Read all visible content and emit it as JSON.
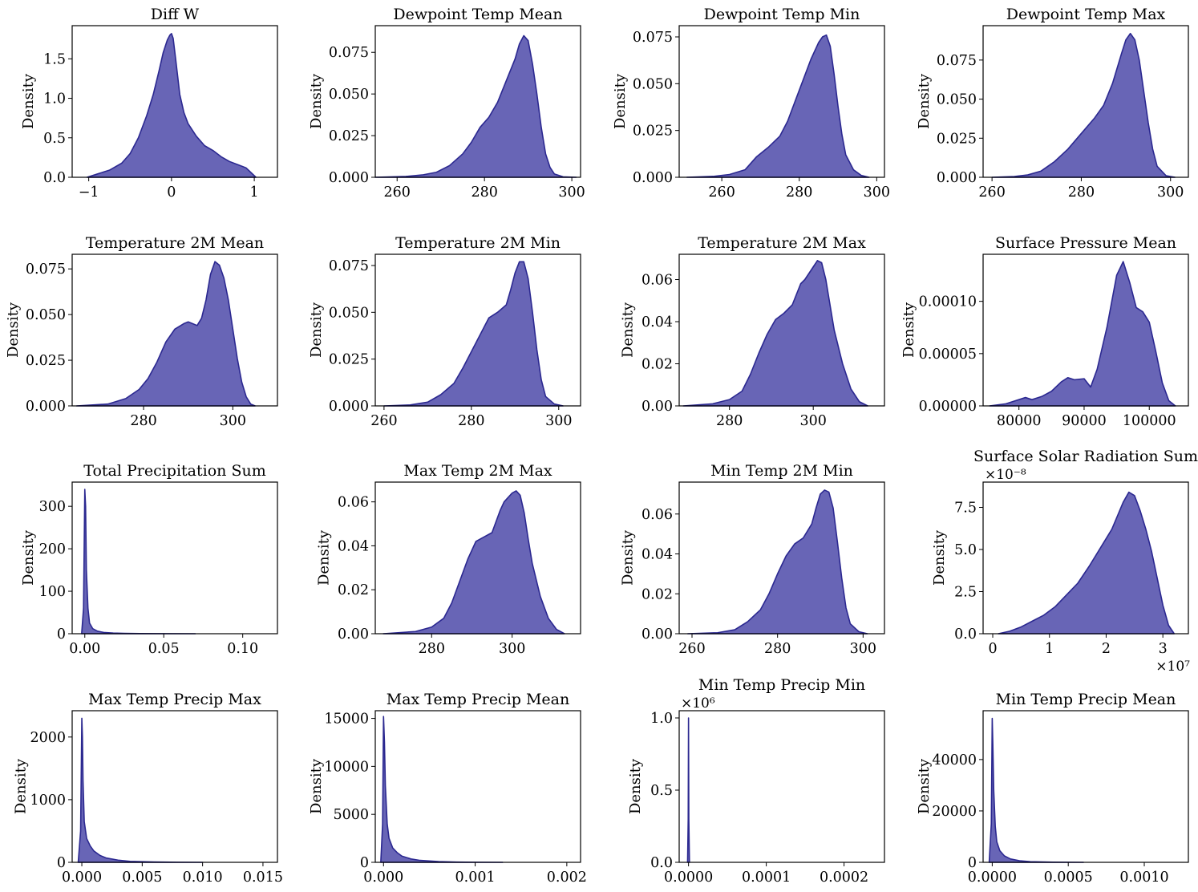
{
  "figure": {
    "fill_color": "#3a36a0",
    "line_color": "#2b2890",
    "fill_opacity": 0.77
  },
  "chart_data": [
    {
      "type": "area",
      "title": "Diff W",
      "ylabel": "Density",
      "xlim": [
        -1.2,
        1.28
      ],
      "ylim": [
        0,
        1.92
      ],
      "xticks": [
        -1,
        0,
        1
      ],
      "xtick_labels": [
        "−1",
        "0",
        "1"
      ],
      "yticks": [
        0,
        0.5,
        1.0,
        1.5
      ],
      "ytick_labels": [
        "0.0",
        "0.5",
        "1.0",
        "1.5"
      ],
      "x": [
        -1.02,
        -0.9,
        -0.75,
        -0.6,
        -0.5,
        -0.4,
        -0.3,
        -0.22,
        -0.15,
        -0.1,
        -0.05,
        -0.02,
        0.0,
        0.02,
        0.05,
        0.1,
        0.15,
        0.2,
        0.3,
        0.4,
        0.5,
        0.6,
        0.7,
        0.8,
        0.9,
        0.95,
        1.02
      ],
      "y": [
        0.0,
        0.04,
        0.09,
        0.18,
        0.3,
        0.5,
        0.78,
        1.05,
        1.35,
        1.58,
        1.74,
        1.8,
        1.82,
        1.76,
        1.5,
        1.05,
        0.82,
        0.68,
        0.52,
        0.4,
        0.34,
        0.26,
        0.2,
        0.16,
        0.12,
        0.07,
        0.0
      ]
    },
    {
      "type": "area",
      "title": "Dewpoint Temp Mean",
      "ylabel": "Density",
      "xlim": [
        255,
        302
      ],
      "ylim": [
        0,
        0.091
      ],
      "xticks": [
        260,
        280,
        300
      ],
      "xtick_labels": [
        "260",
        "280",
        "300"
      ],
      "yticks": [
        0,
        0.025,
        0.05,
        0.075
      ],
      "ytick_labels": [
        "0.000",
        "0.025",
        "0.050",
        "0.075"
      ],
      "x": [
        255,
        262,
        266,
        269,
        272,
        275,
        277,
        279,
        281,
        283,
        285,
        287,
        288,
        289,
        290,
        291,
        292,
        293,
        294,
        295,
        296,
        298,
        301
      ],
      "y": [
        0.0,
        0.0005,
        0.0015,
        0.003,
        0.007,
        0.014,
        0.021,
        0.03,
        0.036,
        0.045,
        0.058,
        0.071,
        0.08,
        0.085,
        0.082,
        0.068,
        0.05,
        0.03,
        0.014,
        0.006,
        0.002,
        0.0003,
        0.0
      ]
    },
    {
      "type": "area",
      "title": "Dewpoint Temp Min",
      "ylabel": "Density",
      "xlim": [
        249,
        302
      ],
      "ylim": [
        0,
        0.081
      ],
      "xticks": [
        260,
        280,
        300
      ],
      "xtick_labels": [
        "260",
        "280",
        "300"
      ],
      "yticks": [
        0,
        0.025,
        0.05,
        0.075
      ],
      "ytick_labels": [
        "0.000",
        "0.025",
        "0.050",
        "0.075"
      ],
      "x": [
        251,
        258,
        262,
        266,
        269,
        272,
        275,
        277,
        279,
        281,
        283,
        285,
        286,
        287,
        288,
        289,
        290,
        291,
        292,
        294,
        296,
        298
      ],
      "y": [
        0.0,
        0.0005,
        0.0015,
        0.004,
        0.011,
        0.016,
        0.022,
        0.03,
        0.041,
        0.052,
        0.063,
        0.072,
        0.075,
        0.076,
        0.07,
        0.055,
        0.038,
        0.023,
        0.012,
        0.004,
        0.001,
        0.0
      ]
    },
    {
      "type": "area",
      "title": "Dewpoint Temp Max",
      "ylabel": "Density",
      "xlim": [
        258,
        304
      ],
      "ylim": [
        0,
        0.097
      ],
      "xticks": [
        260,
        280,
        300
      ],
      "xtick_labels": [
        "260",
        "280",
        "300"
      ],
      "yticks": [
        0,
        0.025,
        0.05,
        0.075
      ],
      "ytick_labels": [
        "0.000",
        "0.025",
        "0.050",
        "0.075"
      ],
      "x": [
        260,
        265,
        268,
        271,
        274,
        277,
        280,
        283,
        285,
        287,
        289,
        290,
        291,
        292,
        293,
        294,
        295,
        296,
        297,
        299,
        301
      ],
      "y": [
        0.0,
        0.0005,
        0.0015,
        0.004,
        0.01,
        0.018,
        0.028,
        0.038,
        0.046,
        0.06,
        0.079,
        0.088,
        0.092,
        0.088,
        0.075,
        0.055,
        0.035,
        0.018,
        0.007,
        0.001,
        0.0
      ]
    },
    {
      "type": "area",
      "title": "Temperature 2M Mean",
      "ylabel": "Density",
      "xlim": [
        264,
        310
      ],
      "ylim": [
        0,
        0.083
      ],
      "xticks": [
        280,
        300
      ],
      "xtick_labels": [
        "280",
        "300"
      ],
      "yticks": [
        0,
        0.025,
        0.05,
        0.075
      ],
      "ytick_labels": [
        "0.000",
        "0.025",
        "0.050",
        "0.075"
      ],
      "x": [
        265,
        272,
        276,
        279,
        281,
        283,
        285,
        287,
        289,
        290,
        291,
        292,
        293,
        294,
        295,
        296,
        297,
        298,
        299,
        300,
        301,
        302,
        303,
        304,
        305
      ],
      "y": [
        0.0,
        0.001,
        0.004,
        0.009,
        0.015,
        0.024,
        0.035,
        0.042,
        0.045,
        0.046,
        0.045,
        0.044,
        0.048,
        0.058,
        0.072,
        0.079,
        0.077,
        0.07,
        0.058,
        0.042,
        0.026,
        0.013,
        0.005,
        0.001,
        0.0
      ]
    },
    {
      "type": "area",
      "title": "Temperature 2M Min",
      "ylabel": "Density",
      "xlim": [
        258,
        305
      ],
      "ylim": [
        0,
        0.081
      ],
      "xticks": [
        260,
        280,
        300
      ],
      "xtick_labels": [
        "260",
        "280",
        "300"
      ],
      "yticks": [
        0,
        0.025,
        0.05,
        0.075
      ],
      "ytick_labels": [
        "0.000",
        "0.025",
        "0.050",
        "0.075"
      ],
      "x": [
        260,
        266,
        270,
        273,
        276,
        278,
        280,
        282,
        284,
        286,
        288,
        289,
        290,
        291,
        292,
        293,
        294,
        295,
        296,
        297,
        299,
        301
      ],
      "y": [
        0.0,
        0.0005,
        0.002,
        0.006,
        0.012,
        0.02,
        0.029,
        0.038,
        0.047,
        0.05,
        0.054,
        0.062,
        0.071,
        0.077,
        0.077,
        0.068,
        0.05,
        0.03,
        0.014,
        0.005,
        0.001,
        0.0
      ]
    },
    {
      "type": "area",
      "title": "Temperature 2M Max",
      "ylabel": "Density",
      "xlim": [
        268,
        317
      ],
      "ylim": [
        0,
        0.072
      ],
      "xticks": [
        280,
        300
      ],
      "xtick_labels": [
        "280",
        "300"
      ],
      "yticks": [
        0,
        0.02,
        0.04,
        0.06
      ],
      "ytick_labels": [
        "0.00",
        "0.02",
        "0.04",
        "0.06"
      ],
      "x": [
        269,
        276,
        280,
        283,
        285,
        287,
        289,
        291,
        293,
        295,
        297,
        298,
        300,
        301,
        302,
        303,
        304,
        305,
        307,
        309,
        311,
        313
      ],
      "y": [
        0.0,
        0.001,
        0.003,
        0.007,
        0.015,
        0.025,
        0.034,
        0.041,
        0.044,
        0.048,
        0.058,
        0.06,
        0.066,
        0.069,
        0.068,
        0.06,
        0.048,
        0.036,
        0.02,
        0.008,
        0.002,
        0.0
      ]
    },
    {
      "type": "area",
      "title": "Surface Pressure Mean",
      "ylabel": "Density",
      "xlim": [
        74500,
        106000
      ],
      "ylim": [
        0,
        0.000145
      ],
      "xticks": [
        80000,
        90000,
        100000
      ],
      "xtick_labels": [
        "80000",
        "90000",
        "100000"
      ],
      "yticks": [
        0,
        5e-05,
        0.0001
      ],
      "ytick_labels": [
        "0.00000",
        "0.00005",
        "0.00010"
      ],
      "x": [
        75500,
        78000,
        80000,
        81000,
        82000,
        83500,
        85000,
        86500,
        87500,
        88500,
        90000,
        91000,
        92000,
        93500,
        95000,
        96000,
        97000,
        98000,
        99000,
        100000,
        101000,
        102000,
        103000,
        104000
      ],
      "y": [
        0.0,
        2e-06,
        6e-06,
        8e-06,
        6e-06,
        9e-06,
        1.4e-05,
        2.3e-05,
        2.7e-05,
        2.5e-05,
        2.6e-05,
        1.8e-05,
        3.5e-05,
        7.5e-05,
        0.000125,
        0.000138,
        0.000118,
        9.4e-05,
        9e-05,
        8e-05,
        5.2e-05,
        2.2e-05,
        5e-06,
        0.0
      ]
    },
    {
      "type": "area",
      "title": "Total Precipitation Sum",
      "ylabel": "Density",
      "xlim": [
        -0.008,
        0.122
      ],
      "ylim": [
        0,
        357
      ],
      "xticks": [
        0,
        0.05,
        0.1
      ],
      "xtick_labels": [
        "0.00",
        "0.05",
        "0.10"
      ],
      "yticks": [
        0,
        100,
        200,
        300
      ],
      "ytick_labels": [
        "0",
        "100",
        "200",
        "300"
      ],
      "x": [
        -0.002,
        -0.0008,
        0.0,
        0.0005,
        0.001,
        0.002,
        0.003,
        0.005,
        0.008,
        0.012,
        0.018,
        0.025,
        0.035,
        0.05,
        0.07
      ],
      "y": [
        0.0,
        60,
        340,
        300,
        150,
        60,
        25,
        12,
        6,
        3,
        1.5,
        0.8,
        0.3,
        0.1,
        0.0
      ]
    },
    {
      "type": "area",
      "title": "Max Temp 2M Max",
      "ylabel": "Density",
      "xlim": [
        266,
        317
      ],
      "ylim": [
        0,
        0.069
      ],
      "xticks": [
        280,
        300
      ],
      "xtick_labels": [
        "280",
        "300"
      ],
      "yticks": [
        0,
        0.02,
        0.04,
        0.06
      ],
      "ytick_labels": [
        "0.00",
        "0.02",
        "0.04",
        "0.06"
      ],
      "x": [
        268,
        276,
        280,
        283,
        285,
        287,
        289,
        291,
        293,
        295,
        297,
        298,
        300,
        301,
        302,
        303,
        304,
        305,
        307,
        309,
        311,
        313
      ],
      "y": [
        0.0,
        0.001,
        0.003,
        0.007,
        0.014,
        0.024,
        0.034,
        0.042,
        0.044,
        0.046,
        0.056,
        0.06,
        0.064,
        0.065,
        0.063,
        0.055,
        0.043,
        0.032,
        0.017,
        0.007,
        0.002,
        0.0
      ]
    },
    {
      "type": "area",
      "title": "Min Temp 2M Min",
      "ylabel": "Density",
      "xlim": [
        257,
        305
      ],
      "ylim": [
        0,
        0.076
      ],
      "xticks": [
        260,
        280,
        300
      ],
      "xtick_labels": [
        "260",
        "280",
        "300"
      ],
      "yticks": [
        0,
        0.02,
        0.04,
        0.06
      ],
      "ytick_labels": [
        "0.00",
        "0.02",
        "0.04",
        "0.06"
      ],
      "x": [
        259,
        266,
        270,
        273,
        276,
        278,
        280,
        282,
        284,
        286,
        288,
        289,
        290,
        291,
        292,
        293,
        294,
        295,
        296,
        297,
        299,
        301
      ],
      "y": [
        0.0,
        0.0005,
        0.002,
        0.006,
        0.012,
        0.02,
        0.03,
        0.039,
        0.045,
        0.048,
        0.055,
        0.063,
        0.07,
        0.072,
        0.071,
        0.063,
        0.046,
        0.028,
        0.013,
        0.005,
        0.001,
        0.0
      ]
    },
    {
      "type": "area",
      "title": "Surface Solar Radiation Sum",
      "ylabel": "Density",
      "xlim": [
        -0.17,
        3.45
      ],
      "ylim": [
        0,
        9.0
      ],
      "y_offset_label": "×10⁻⁸",
      "x_offset_label": "×10⁷",
      "xticks": [
        0,
        1,
        2,
        3
      ],
      "xtick_labels": [
        "0",
        "1",
        "2",
        "3"
      ],
      "yticks": [
        0,
        2.5,
        5.0,
        7.5
      ],
      "ytick_labels": [
        "0.0",
        "2.5",
        "5.0",
        "7.5"
      ],
      "x": [
        0.1,
        0.3,
        0.5,
        0.7,
        0.9,
        1.1,
        1.3,
        1.5,
        1.7,
        1.9,
        2.1,
        2.2,
        2.3,
        2.4,
        2.5,
        2.6,
        2.7,
        2.8,
        2.9,
        3.0,
        3.1,
        3.2
      ],
      "y": [
        0.0,
        0.15,
        0.4,
        0.75,
        1.1,
        1.6,
        2.3,
        3.0,
        4.0,
        5.1,
        6.2,
        7.0,
        7.8,
        8.4,
        8.2,
        7.3,
        6.2,
        4.9,
        3.3,
        1.7,
        0.5,
        0.0
      ]
    },
    {
      "type": "area",
      "title": "Max Temp Precip Max",
      "ylabel": "Density",
      "xlim": [
        -0.0008,
        0.0162
      ],
      "ylim": [
        0,
        2420
      ],
      "xticks": [
        0,
        0.005,
        0.01,
        0.015
      ],
      "xtick_labels": [
        "0.000",
        "0.005",
        "0.010",
        "0.015"
      ],
      "yticks": [
        0,
        1000,
        2000
      ],
      "ytick_labels": [
        "0",
        "1000",
        "2000"
      ],
      "x": [
        -0.0003,
        -0.0001,
        0.0,
        5e-05,
        0.0001,
        0.0002,
        0.0004,
        0.0007,
        0.001,
        0.0015,
        0.002,
        0.003,
        0.004,
        0.006,
        0.008,
        0.01
      ],
      "y": [
        0.0,
        500,
        2300,
        2000,
        1300,
        650,
        380,
        260,
        180,
        110,
        70,
        35,
        15,
        5,
        1,
        0.0
      ]
    },
    {
      "type": "area",
      "title": "Max Temp Precip Mean",
      "ylabel": "Density",
      "xlim": [
        -9e-05,
        0.00215
      ],
      "ylim": [
        0,
        15800
      ],
      "xticks": [
        0,
        0.001,
        0.002
      ],
      "xtick_labels": [
        "0.000",
        "0.001",
        "0.002"
      ],
      "yticks": [
        0,
        5000,
        10000,
        15000
      ],
      "ytick_labels": [
        "0",
        "5000",
        "10000",
        "15000"
      ],
      "x": [
        -3e-05,
        -1e-05,
        0.0,
        1e-05,
        2e-05,
        4e-05,
        6e-05,
        0.0001,
        0.00015,
        0.0002,
        0.0003,
        0.0004,
        0.0006,
        0.0008,
        0.001,
        0.0013
      ],
      "y": [
        0.0,
        4000,
        15200,
        12500,
        8000,
        4000,
        2500,
        1500,
        1000,
        650,
        350,
        200,
        80,
        30,
        10,
        0.0
      ]
    },
    {
      "type": "area",
      "title": "Min Temp Precip Min",
      "ylabel": "Density",
      "xlim": [
        -1.2e-05,
        0.000252
      ],
      "ylim": [
        0,
        1.05
      ],
      "y_offset_label": "×10⁶",
      "xticks": [
        0,
        0.0001,
        0.0002
      ],
      "xtick_labels": [
        "0.0000",
        "0.0001",
        "0.0002"
      ],
      "yticks": [
        0,
        0.5,
        1.0
      ],
      "ytick_labels": [
        "0.0",
        "0.5",
        "1.0"
      ],
      "x": [
        -1.2e-06,
        -4e-07,
        0.0,
        4e-07,
        1.2e-06
      ],
      "y": [
        0.0,
        0.3,
        1.0,
        0.3,
        0.0
      ]
    },
    {
      "type": "area",
      "title": "Min Temp Precip Mean",
      "ylabel": "Density",
      "xlim": [
        -6e-05,
        0.00129
      ],
      "ylim": [
        0,
        59000
      ],
      "xticks": [
        0,
        0.0005,
        0.001
      ],
      "xtick_labels": [
        "0.0000",
        "0.0005",
        "0.0010"
      ],
      "yticks": [
        0,
        20000,
        40000
      ],
      "ytick_labels": [
        "0",
        "20000",
        "40000"
      ],
      "x": [
        -2e-05,
        -6e-06,
        0.0,
        4e-06,
        1e-05,
        2e-05,
        3e-05,
        5e-05,
        8e-05,
        0.00012,
        0.00018,
        0.00025,
        0.0004,
        0.0006
      ],
      "y": [
        0.0,
        15000,
        56000,
        46000,
        28000,
        14000,
        8000,
        4500,
        2500,
        1300,
        600,
        250,
        50,
        0.0
      ]
    }
  ]
}
